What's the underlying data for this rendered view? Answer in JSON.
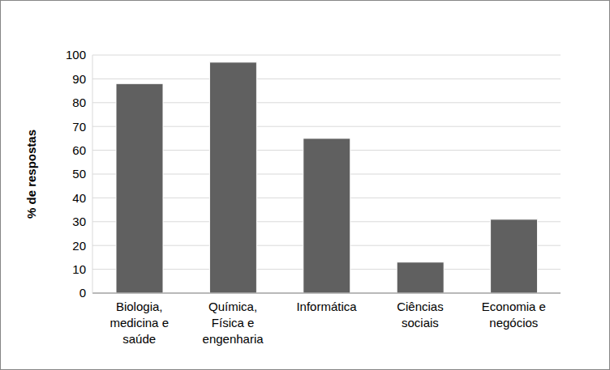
{
  "chart_data": {
    "type": "bar",
    "y_label": "% de respostas",
    "categories": [
      "Biologia, medicina e saúde",
      "Química, Física e engenharia",
      "Informática",
      "Ciências sociais",
      "Economia e negócios"
    ],
    "values": [
      88,
      97,
      65,
      13,
      31
    ],
    "color": "#606060",
    "ylim": [
      0,
      100
    ],
    "yticks": [
      0,
      10,
      20,
      30,
      40,
      50,
      60,
      70,
      80,
      90,
      100
    ],
    "grid": true
  }
}
